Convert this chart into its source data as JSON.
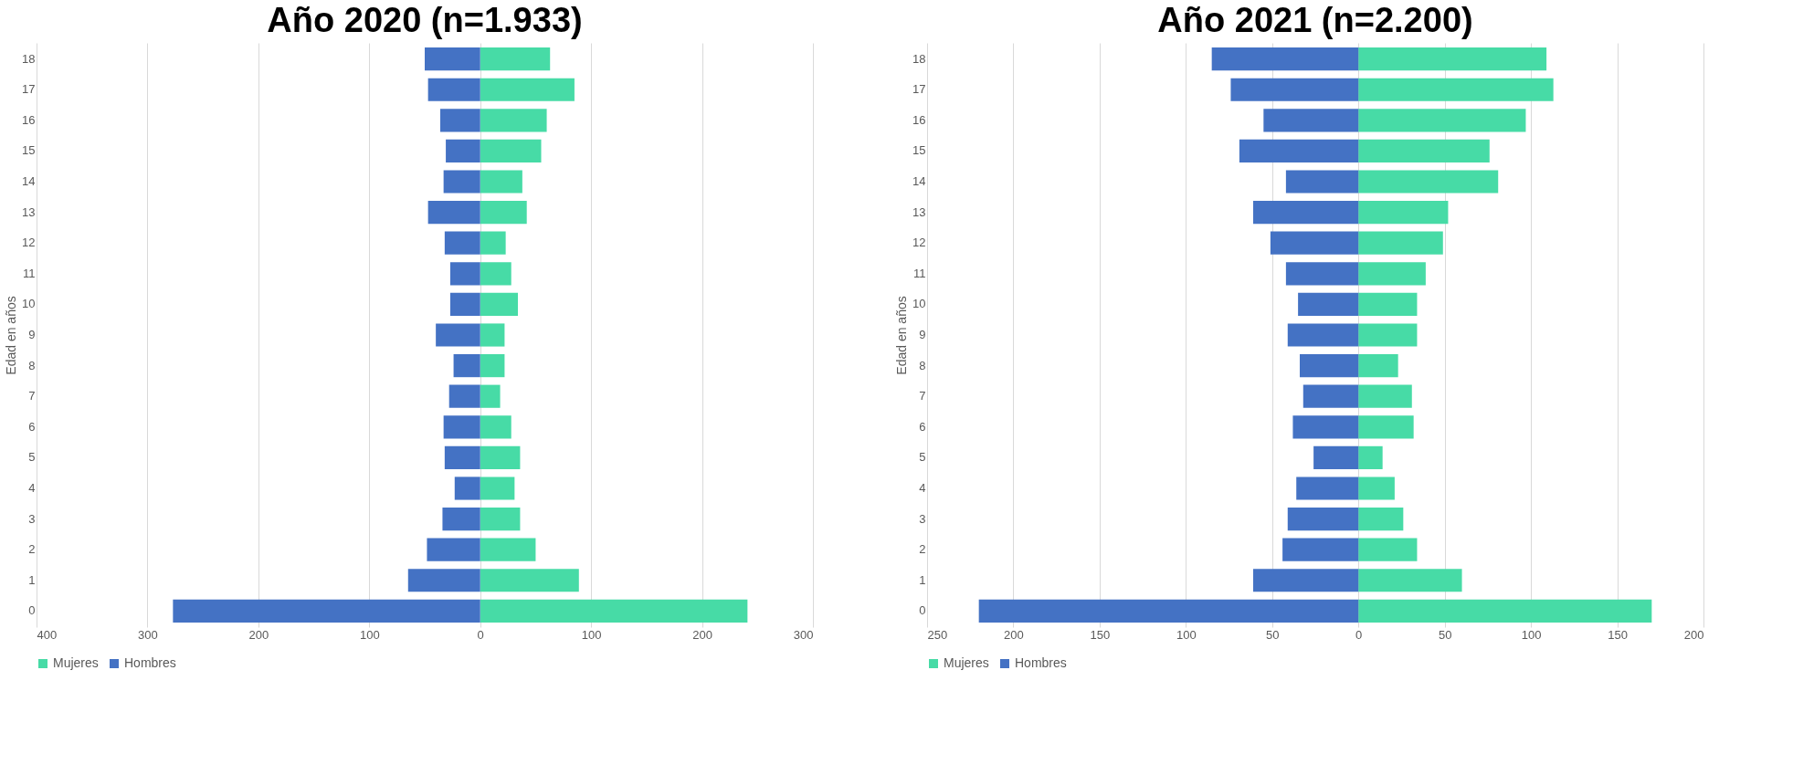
{
  "chart_data": [
    {
      "type": "bar",
      "orientation": "horizontal",
      "stacked": true,
      "title": "Año 2020 (n=1.933)",
      "ylabel": "Edad en años",
      "categories": [
        "18",
        "17",
        "16",
        "15",
        "14",
        "13",
        "12",
        "11",
        "10",
        "9",
        "8",
        "7",
        "6",
        "5",
        "4",
        "3",
        "2",
        "1",
        "0"
      ],
      "series": [
        {
          "name": "Mujeres",
          "color": "#47dba6",
          "values": [
            63,
            85,
            60,
            55,
            38,
            42,
            23,
            28,
            34,
            22,
            22,
            18,
            28,
            36,
            31,
            36,
            50,
            89,
            241
          ]
        },
        {
          "name": "Hombres",
          "color": "#4472c4",
          "values": [
            -50,
            -47,
            -36,
            -31,
            -33,
            -47,
            -32,
            -27,
            -27,
            -40,
            -24,
            -28,
            -33,
            -32,
            -23,
            -34,
            -48,
            -65,
            -277
          ]
        }
      ],
      "xlim": [
        -400,
        300
      ],
      "xticks": [
        {
          "value": -400,
          "label": "400"
        },
        {
          "value": -300,
          "label": "300"
        },
        {
          "value": -200,
          "label": "200"
        },
        {
          "value": -100,
          "label": "100"
        },
        0,
        100,
        200,
        300
      ],
      "grid": "x",
      "legend": "bottom"
    },
    {
      "type": "bar",
      "orientation": "horizontal",
      "stacked": true,
      "title": "Año 2021 (n=2.200)",
      "ylabel": "Edad en años",
      "categories": [
        "18",
        "17",
        "16",
        "15",
        "14",
        "13",
        "12",
        "11",
        "10",
        "9",
        "8",
        "7",
        "6",
        "5",
        "4",
        "3",
        "2",
        "1",
        "0"
      ],
      "series": [
        {
          "name": "Mujeres",
          "color": "#47dba6",
          "values": [
            109,
            113,
            97,
            76,
            81,
            52,
            49,
            39,
            34,
            34,
            23,
            31,
            32,
            14,
            21,
            26,
            34,
            60,
            170
          ]
        },
        {
          "name": "Hombres",
          "color": "#4472c4",
          "values": [
            -85,
            -74,
            -55,
            -69,
            -42,
            -61,
            -51,
            -42,
            -35,
            -41,
            -34,
            -32,
            -38,
            -26,
            -36,
            -41,
            -44,
            -61,
            -220
          ]
        }
      ],
      "xlim": [
        -250,
        200
      ],
      "xticks": [
        {
          "value": -250,
          "label": "250"
        },
        {
          "value": -200,
          "label": "200"
        },
        {
          "value": -150,
          "label": "150"
        },
        {
          "value": -100,
          "label": "100"
        },
        {
          "value": -50,
          "label": "50"
        },
        0,
        50,
        100,
        150,
        200
      ],
      "grid": "x",
      "legend": "bottom"
    }
  ]
}
